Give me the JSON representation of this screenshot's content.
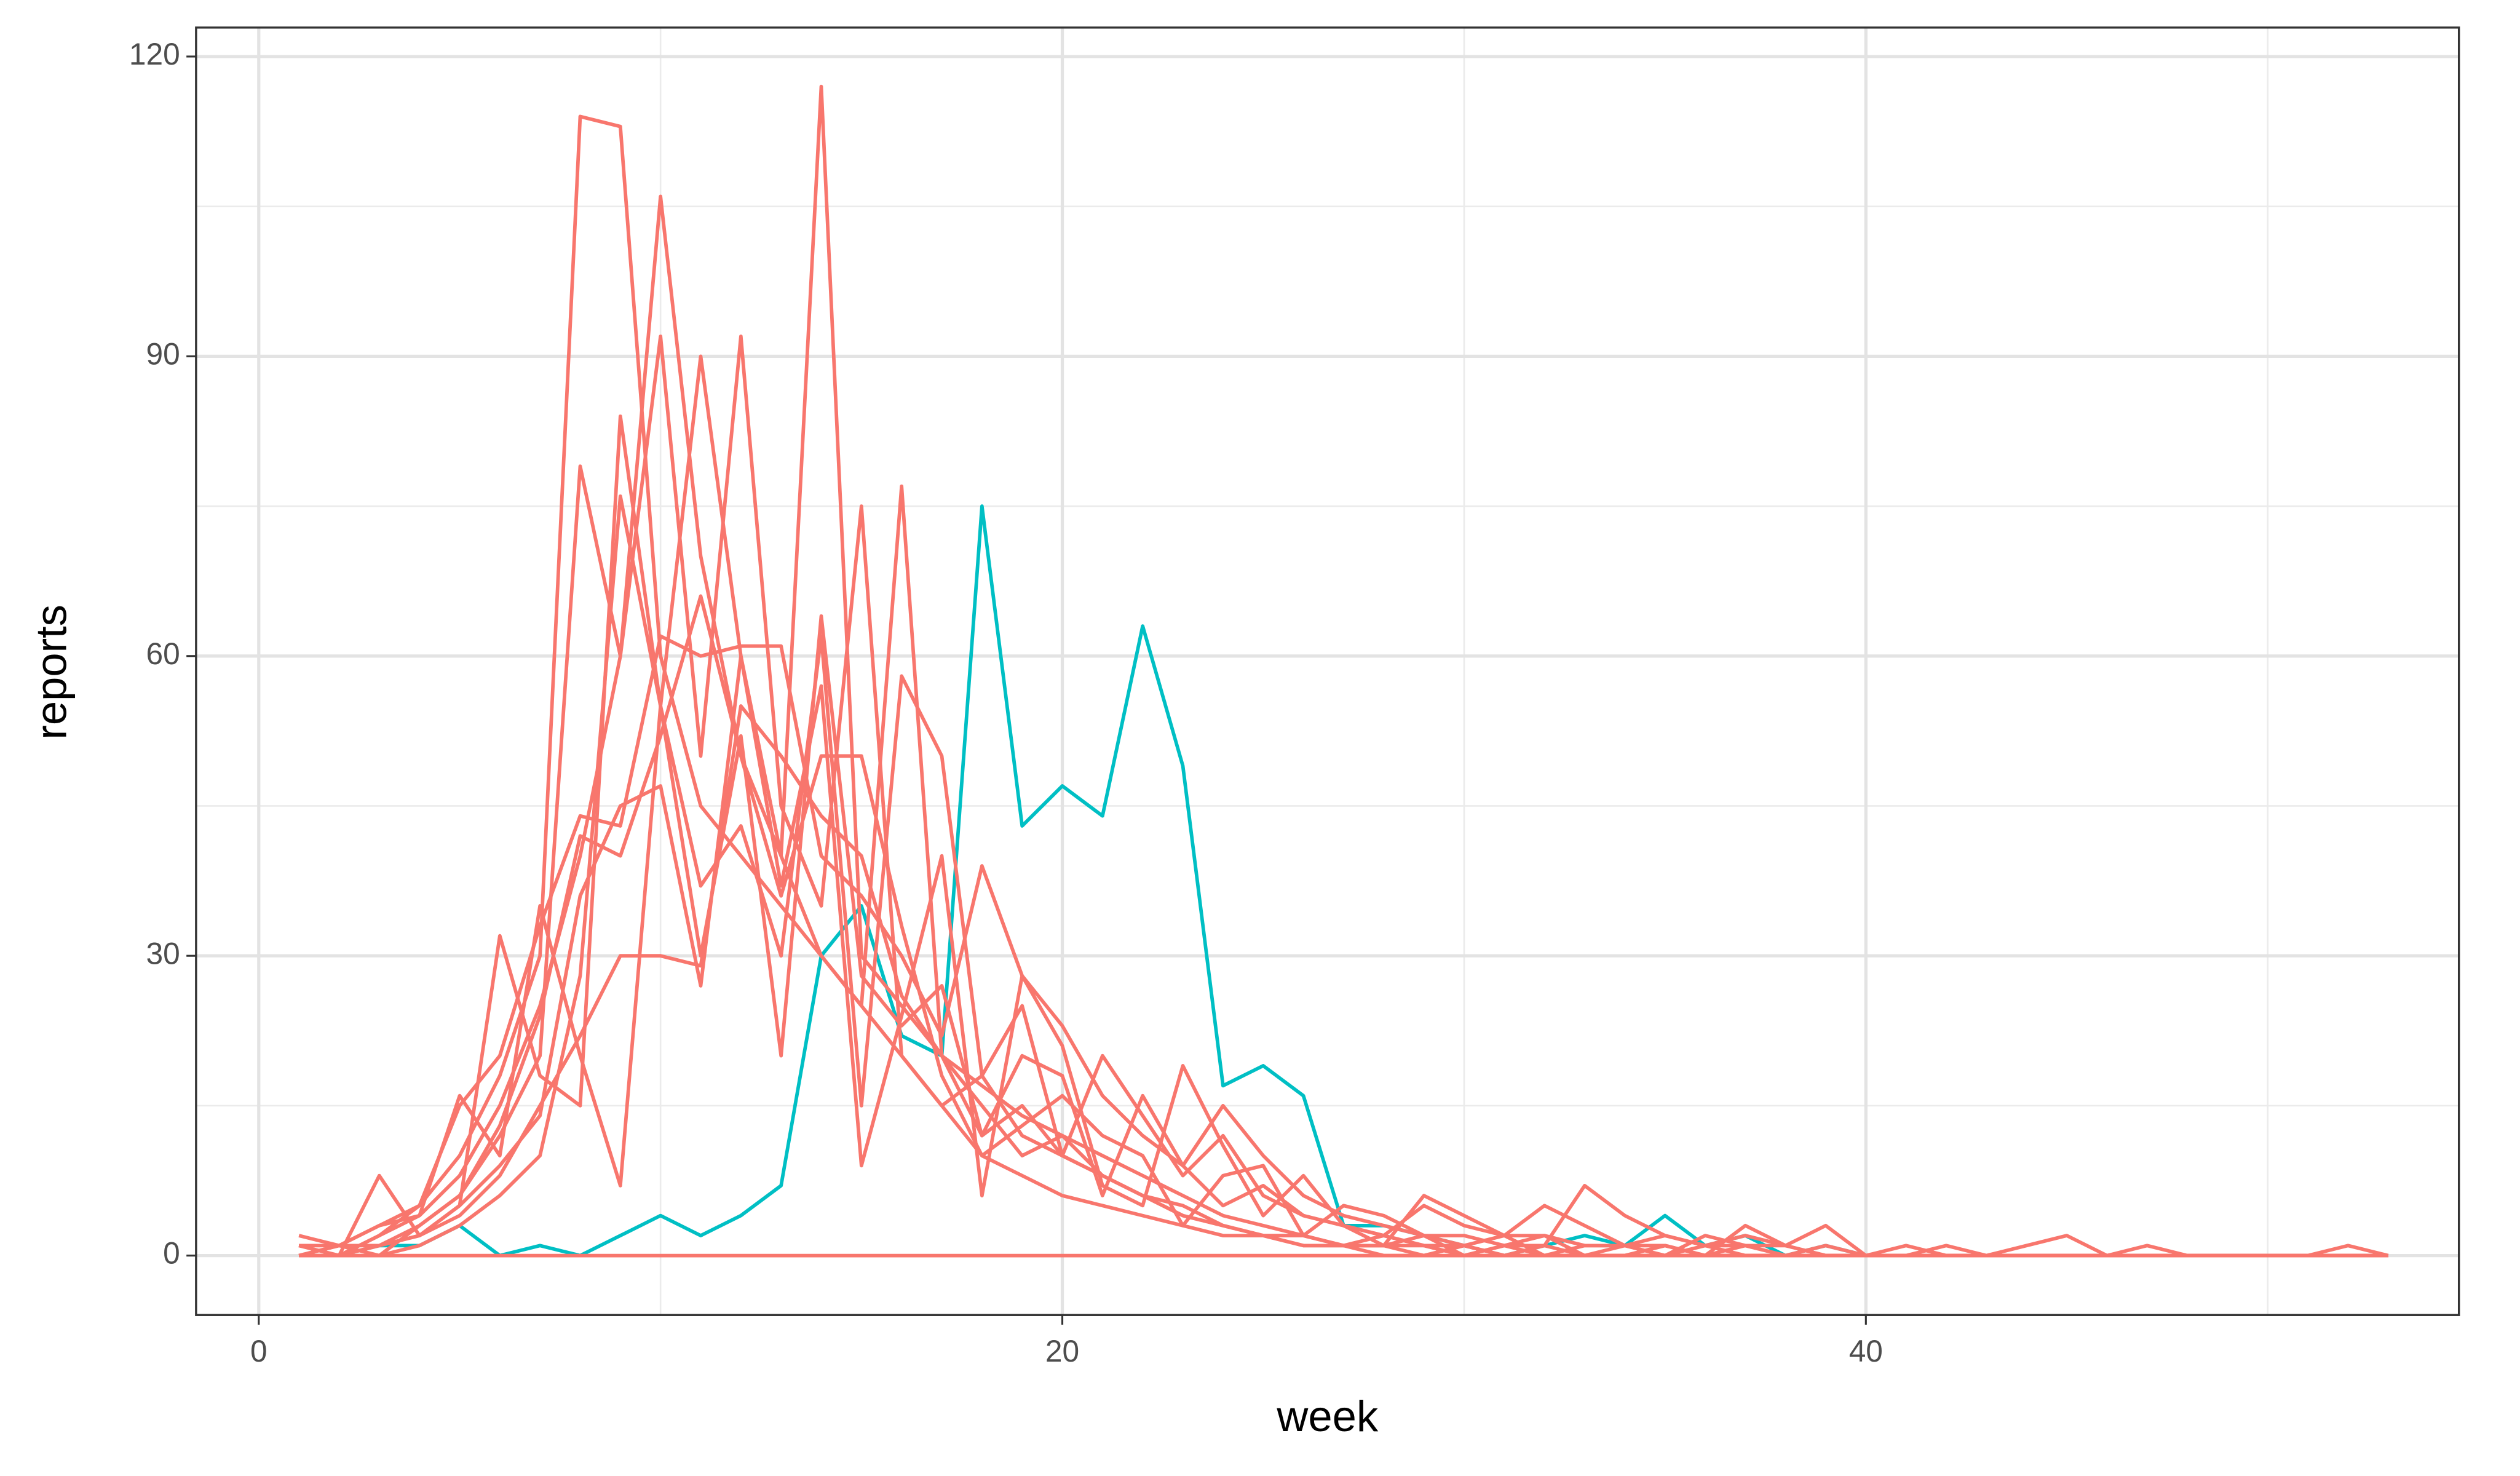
{
  "chart_data": {
    "type": "line",
    "x_label": "week",
    "y_label": "reports",
    "x": [
      1,
      2,
      3,
      4,
      5,
      6,
      7,
      8,
      9,
      10,
      11,
      12,
      13,
      14,
      15,
      16,
      17,
      18,
      19,
      20,
      21,
      22,
      23,
      24,
      25,
      26,
      27,
      28,
      29,
      30,
      31,
      32,
      33,
      34,
      35,
      36,
      37,
      38,
      39,
      40,
      41,
      42,
      43,
      44,
      45,
      46,
      47,
      48,
      49,
      50,
      51,
      52,
      53
    ],
    "series": [
      {
        "color": "#00BFC4",
        "values": [
          0,
          0,
          1,
          1,
          3,
          0,
          1,
          0,
          2,
          4,
          2,
          4,
          7,
          30,
          35,
          22,
          20,
          75,
          43,
          47,
          44,
          63,
          49,
          17,
          19,
          16,
          3,
          3,
          2,
          1,
          0,
          1,
          2,
          1,
          4,
          1,
          2,
          0,
          1,
          0,
          0,
          0,
          0,
          0,
          0,
          0,
          0,
          0,
          0,
          0,
          0,
          0,
          0
        ]
      },
      {
        "color": "#F8766D",
        "values": [
          2,
          1,
          3,
          5,
          10,
          18,
          30,
          114,
          113,
          60,
          45,
          40,
          35,
          30,
          25,
          20,
          15,
          18,
          12,
          10,
          8,
          6,
          4,
          3,
          2,
          2,
          1,
          1,
          0,
          1,
          0,
          0,
          0,
          0,
          1,
          0,
          0,
          0,
          0,
          0,
          0,
          0,
          0,
          0,
          0,
          0,
          0,
          0,
          0,
          0,
          0,
          0,
          0
        ]
      },
      {
        "color": "#F8766D",
        "values": [
          1,
          0,
          2,
          4,
          8,
          15,
          25,
          40,
          60,
          106,
          70,
          50,
          40,
          117,
          30,
          25,
          20,
          15,
          10,
          12,
          8,
          6,
          4,
          3,
          2,
          1,
          1,
          2,
          1,
          0,
          1,
          0,
          0,
          0,
          0,
          0,
          1,
          0,
          0,
          0,
          0,
          0,
          0,
          0,
          0,
          0,
          0,
          0,
          0,
          0,
          0,
          0,
          0
        ]
      },
      {
        "color": "#F8766D",
        "values": [
          0,
          1,
          1,
          3,
          6,
          12,
          20,
          79,
          60,
          92,
          50,
          92,
          45,
          35,
          75,
          20,
          15,
          10,
          8,
          6,
          5,
          4,
          3,
          2,
          2,
          1,
          1,
          0,
          0,
          1,
          0,
          0,
          0,
          0,
          0,
          0,
          0,
          0,
          0,
          0,
          0,
          0,
          0,
          0,
          0,
          0,
          0,
          0,
          0,
          0,
          0,
          0,
          0
        ]
      },
      {
        "color": "#F8766D",
        "values": [
          0,
          0,
          8,
          2,
          5,
          32,
          18,
          15,
          84,
          55,
          90,
          60,
          40,
          30,
          25,
          77,
          20,
          12,
          15,
          10,
          8,
          6,
          5,
          3,
          2,
          2,
          1,
          1,
          1,
          0,
          0,
          0,
          0,
          0,
          0,
          0,
          0,
          0,
          0,
          0,
          0,
          0,
          0,
          0,
          0,
          0,
          0,
          0,
          0,
          0,
          0,
          0,
          0
        ]
      },
      {
        "color": "#F8766D",
        "values": [
          0,
          0,
          2,
          5,
          15,
          20,
          33,
          44,
          43,
          62,
          60,
          61,
          61,
          40,
          36,
          30,
          22,
          39,
          28,
          23,
          16,
          12,
          9,
          15,
          10,
          6,
          4,
          3,
          2,
          2,
          1,
          1,
          7,
          4,
          2,
          1,
          1,
          0,
          0,
          0,
          0,
          0,
          0,
          0,
          0,
          0,
          0,
          0,
          0,
          0,
          0,
          0,
          0
        ]
      },
      {
        "color": "#F8766D",
        "values": [
          0,
          1,
          3,
          4,
          16,
          10,
          35,
          20,
          7,
          55,
          37,
          43,
          30,
          62,
          15,
          58,
          50,
          18,
          25,
          10,
          20,
          14,
          8,
          12,
          6,
          4,
          3,
          2,
          5,
          3,
          2,
          2,
          1,
          1,
          2,
          1,
          2,
          1,
          3,
          0,
          1,
          0,
          0,
          1,
          2,
          0,
          1,
          0,
          0,
          0,
          0,
          1,
          0
        ]
      },
      {
        "color": "#F8766D",
        "values": [
          1,
          0,
          1,
          2,
          4,
          8,
          15,
          22,
          30,
          30,
          29,
          55,
          50,
          44,
          40,
          26,
          20,
          17,
          14,
          12,
          10,
          8,
          6,
          4,
          3,
          2,
          1,
          1,
          6,
          4,
          2,
          5,
          3,
          1,
          1,
          0,
          3,
          1,
          0,
          0,
          0,
          0,
          0,
          0,
          0,
          0,
          0,
          0,
          0,
          0,
          0,
          0,
          0
        ]
      },
      {
        "color": "#F8766D",
        "values": [
          0,
          0,
          0,
          1,
          3,
          6,
          10,
          28,
          76,
          55,
          30,
          52,
          20,
          64,
          28,
          23,
          27,
          12,
          20,
          18,
          6,
          16,
          9,
          5,
          7,
          4,
          3,
          2,
          1,
          1,
          2,
          0,
          1,
          1,
          0,
          1,
          0,
          0,
          1,
          0,
          0,
          1,
          0,
          0,
          0,
          0,
          0,
          0,
          0,
          0,
          0,
          0,
          0
        ]
      },
      {
        "color": "#F8766D",
        "values": [
          0,
          0,
          1,
          2,
          5,
          9,
          14,
          36,
          45,
          47,
          27,
          60,
          37,
          57,
          9,
          24,
          40,
          6,
          28,
          21,
          7,
          5,
          19,
          11,
          4,
          8,
          3,
          1,
          2,
          0,
          1,
          2,
          0,
          1,
          0,
          2,
          1,
          1,
          0,
          0,
          0,
          0,
          0,
          0,
          0,
          0,
          0,
          0,
          0,
          0,
          0,
          0,
          0
        ]
      },
      {
        "color": "#F8766D",
        "values": [
          1,
          1,
          0,
          3,
          6,
          13,
          24,
          42,
          40,
          52,
          66,
          50,
          36,
          50,
          50,
          33,
          18,
          10,
          13,
          16,
          12,
          10,
          3,
          8,
          9,
          2,
          5,
          4,
          2,
          1,
          0,
          1,
          0,
          0,
          1,
          0,
          0,
          0,
          0,
          0,
          0,
          0,
          0,
          0,
          0,
          0,
          0,
          0,
          0,
          0,
          0,
          0,
          0
        ]
      },
      {
        "color": "#F8766D",
        "values": [
          0,
          0,
          0,
          0,
          0,
          0,
          0,
          0,
          0,
          0,
          0,
          0,
          0,
          0,
          0,
          0,
          0,
          0,
          0,
          0,
          0,
          0,
          0,
          0,
          0,
          0,
          0,
          0,
          0,
          0,
          0,
          0,
          0,
          0,
          0,
          0,
          0,
          0,
          0,
          0,
          0,
          0,
          0,
          0,
          0,
          0,
          0,
          0,
          0,
          0,
          0,
          0,
          0
        ]
      }
    ],
    "xlim": [
      -1.56,
      54.76
    ],
    "ylim": [
      -5.95,
      122.9
    ],
    "xticks": [
      0,
      20,
      40
    ],
    "yticks": [
      0,
      30,
      60,
      90,
      120
    ],
    "xminorticks": [
      10,
      30,
      50
    ],
    "yminorticks": [
      15,
      45,
      75,
      105
    ],
    "grid": true
  }
}
